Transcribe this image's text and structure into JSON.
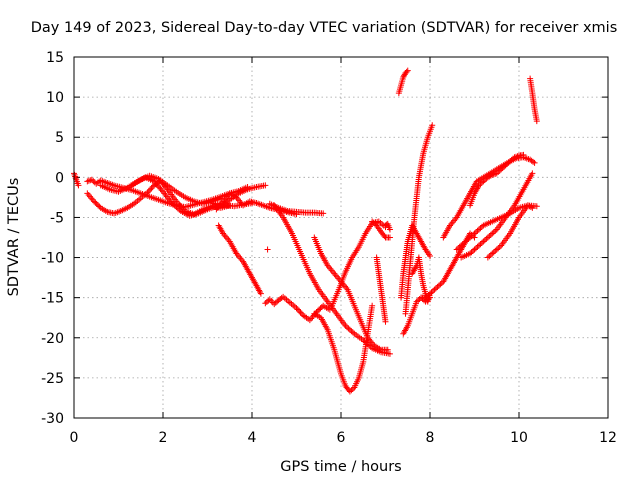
{
  "chart_data": {
    "type": "scatter",
    "title": "Day 149 of 2023, Sidereal Day-to-day VTEC variation (SDTVAR) for receiver xmis",
    "xlabel": "GPS time / hours",
    "ylabel": "SDTVAR / TECUs",
    "xlim": [
      0,
      12
    ],
    "ylim": [
      -30,
      15
    ],
    "xticks": [
      0,
      2,
      4,
      6,
      8,
      10,
      12
    ],
    "yticks": [
      -30,
      -25,
      -20,
      -15,
      -10,
      -5,
      0,
      5,
      10,
      15
    ],
    "grid": true,
    "marker": "+",
    "color": "#ff0000",
    "series": [
      {
        "x": [
          0.0,
          0.05,
          0.1
        ],
        "y": [
          0.5,
          -0.3,
          -1.0
        ]
      },
      {
        "x": [
          0.3,
          0.4,
          0.5,
          0.6,
          0.75,
          0.9,
          1.1,
          1.3,
          1.5,
          1.7,
          1.9,
          2.1,
          2.3,
          2.5,
          2.7,
          2.9,
          3.1,
          3.3,
          3.5,
          3.7,
          3.9
        ],
        "y": [
          -0.5,
          -0.3,
          -0.8,
          -0.4,
          -0.7,
          -1.0,
          -1.3,
          -1.6,
          -2.0,
          -2.4,
          -2.8,
          -3.2,
          -3.5,
          -3.7,
          -3.4,
          -3.1,
          -2.8,
          -2.4,
          -2.0,
          -1.7,
          -1.2
        ]
      },
      {
        "x": [
          0.3,
          0.45,
          0.6,
          0.75,
          0.9,
          1.05,
          1.2,
          1.35,
          1.5,
          1.65,
          1.8,
          1.95,
          2.1,
          2.3,
          2.5,
          2.7,
          2.9,
          3.1,
          3.3
        ],
        "y": [
          -2.0,
          -3.0,
          -3.8,
          -4.3,
          -4.5,
          -4.2,
          -3.8,
          -3.3,
          -2.6,
          -1.9,
          -1.0,
          -0.4,
          -1.0,
          -1.8,
          -2.5,
          -3.0,
          -3.3,
          -3.0,
          -2.6
        ]
      },
      {
        "x": [
          0.6,
          0.8,
          1.0,
          1.2,
          1.4,
          1.6,
          1.8,
          2.0,
          2.2,
          2.4,
          2.6,
          2.8,
          3.0,
          3.2,
          3.4,
          3.6,
          3.8,
          4.0
        ],
        "y": [
          -1.0,
          -1.5,
          -1.8,
          -1.3,
          -0.6,
          0.0,
          -0.5,
          -1.8,
          -3.2,
          -4.2,
          -4.8,
          -4.5,
          -4.0,
          -3.6,
          -3.5,
          -3.6,
          -3.4,
          -3.2
        ]
      },
      {
        "x": [
          1.3,
          1.5,
          1.7,
          1.9,
          2.1,
          2.3,
          2.5,
          2.7,
          2.9,
          3.1,
          3.3,
          3.5
        ],
        "y": [
          -1.0,
          -0.3,
          0.2,
          -0.2,
          -1.5,
          -3.0,
          -4.2,
          -4.6,
          -4.0,
          -3.6,
          -3.8,
          -3.5
        ]
      },
      {
        "x": [
          3.2,
          3.35,
          3.5,
          3.65,
          3.8,
          3.95,
          4.1,
          4.25,
          4.4,
          4.55,
          4.7,
          4.85,
          5.0
        ],
        "y": [
          -4.0,
          -3.0,
          -2.0,
          -2.5,
          -3.5,
          -3.0,
          -3.2,
          -3.5,
          -3.8,
          -4.0,
          -4.2,
          -4.4,
          -4.6
        ]
      },
      {
        "x": [
          3.1,
          3.3,
          3.5,
          3.7,
          3.9,
          4.1,
          4.3
        ],
        "y": [
          -3.2,
          -3.5,
          -2.8,
          -2.0,
          -1.5,
          -1.2,
          -1.0
        ]
      },
      {
        "x": [
          3.25,
          3.35,
          3.5,
          3.65,
          3.8,
          3.9,
          4.0,
          4.1,
          4.2
        ],
        "y": [
          -6.0,
          -7.0,
          -8.0,
          -9.5,
          -10.5,
          -11.5,
          -12.5,
          -13.5,
          -14.5
        ]
      },
      {
        "x": [
          4.35
        ],
        "y": [
          -9.0
        ]
      },
      {
        "x": [
          4.3,
          4.4,
          4.5,
          4.6,
          4.7,
          4.85,
          5.0,
          5.15,
          5.3,
          5.45,
          5.6,
          5.75
        ],
        "y": [
          -15.7,
          -15.2,
          -15.8,
          -15.3,
          -14.9,
          -15.6,
          -16.3,
          -17.2,
          -17.8,
          -16.8,
          -16.0,
          -16.5
        ]
      },
      {
        "x": [
          4.4,
          4.6,
          4.8,
          5.0,
          5.2,
          5.4,
          5.6
        ],
        "y": [
          -3.3,
          -3.8,
          -4.2,
          -4.3,
          -4.4,
          -4.4,
          -4.5
        ]
      },
      {
        "x": [
          4.5,
          4.7,
          4.9,
          5.1,
          5.3,
          5.5,
          5.7,
          5.9,
          6.1,
          6.3,
          6.5,
          6.7,
          6.9,
          7.1
        ],
        "y": [
          -3.5,
          -5.0,
          -7.0,
          -9.5,
          -12.0,
          -14.0,
          -15.5,
          -17.0,
          -18.5,
          -19.5,
          -20.3,
          -21.3,
          -21.8,
          -22.0
        ]
      },
      {
        "x": [
          5.4,
          5.55,
          5.7,
          5.85,
          6.0,
          6.15,
          6.3,
          6.45,
          6.6,
          6.75,
          6.9,
          7.05
        ],
        "y": [
          -7.5,
          -9.5,
          -11.0,
          -12.0,
          -13.0,
          -14.0,
          -16.0,
          -18.0,
          -20.0,
          -21.0,
          -21.5,
          -21.5
        ]
      },
      {
        "x": [
          5.4,
          5.55,
          5.7,
          5.85,
          6.0,
          6.1,
          6.2,
          6.3,
          6.4,
          6.5,
          6.6,
          6.7
        ],
        "y": [
          -17.0,
          -17.5,
          -19.0,
          -21.5,
          -24.5,
          -26.0,
          -26.7,
          -26.2,
          -25.0,
          -23.0,
          -19.5,
          -16.0
        ]
      },
      {
        "x": [
          5.8,
          5.95,
          6.1,
          6.25,
          6.4,
          6.55,
          6.7,
          6.85,
          7.0
        ],
        "y": [
          -16.0,
          -14.0,
          -11.8,
          -10.0,
          -8.7,
          -7.0,
          -5.7,
          -5.5,
          -6.2
        ]
      },
      {
        "x": [
          6.7,
          6.8,
          6.9,
          7.0,
          7.1
        ],
        "y": [
          -5.5,
          -6.0,
          -6.8,
          -7.5,
          -7.5
        ]
      },
      {
        "x": [
          6.8,
          6.85,
          6.9,
          6.95,
          7.0
        ],
        "y": [
          -10.0,
          -12.0,
          -14.0,
          -16.0,
          -18.0
        ]
      },
      {
        "x": [
          7.0,
          7.05,
          7.1
        ],
        "y": [
          -6.0,
          -5.8,
          -6.5
        ]
      },
      {
        "x": [
          7.3,
          7.35,
          7.4,
          7.45,
          7.5
        ],
        "y": [
          10.5,
          11.5,
          12.5,
          13.0,
          13.3
        ]
      },
      {
        "x": [
          7.35,
          7.4,
          7.45,
          7.5,
          7.6,
          7.7,
          7.8,
          7.9,
          8.0
        ],
        "y": [
          -15.0,
          -12.0,
          -10.0,
          -8.0,
          -6.0,
          -7.0,
          -8.0,
          -9.0,
          -9.8
        ]
      },
      {
        "x": [
          7.4,
          7.5,
          7.6,
          7.7,
          7.8,
          7.9,
          8.0
        ],
        "y": [
          -19.5,
          -18.5,
          -17.0,
          -15.5,
          -15.0,
          -15.5,
          -15.0
        ]
      },
      {
        "x": [
          7.45,
          7.55,
          7.65,
          7.75,
          7.85,
          7.95,
          8.05
        ],
        "y": [
          -17.0,
          -11.0,
          -5.0,
          0.0,
          3.0,
          5.0,
          6.5
        ]
      },
      {
        "x": [
          7.6,
          7.7,
          7.75,
          7.8,
          7.85,
          7.9,
          7.95,
          8.0
        ],
        "y": [
          -12.0,
          -11.0,
          -10.0,
          -12.0,
          -13.5,
          -14.5,
          -15.5,
          -14.5
        ]
      },
      {
        "x": [
          7.8,
          7.9,
          8.0,
          8.1,
          8.2,
          8.3,
          8.4,
          8.5,
          8.6,
          8.7,
          8.8,
          8.9,
          9.0
        ],
        "y": [
          -15.0,
          -15.0,
          -14.5,
          -14.0,
          -13.5,
          -13.0,
          -12.0,
          -11.0,
          -10.0,
          -9.0,
          -8.0,
          -7.0,
          -7.5
        ]
      },
      {
        "x": [
          8.3,
          8.45,
          8.6,
          8.75,
          8.9,
          9.05,
          9.2,
          9.35,
          9.5,
          9.65,
          9.8,
          9.95,
          10.1,
          10.25,
          10.35
        ],
        "y": [
          -7.5,
          -6.0,
          -5.0,
          -3.5,
          -2.0,
          -0.5,
          0.0,
          0.5,
          1.0,
          1.5,
          2.0,
          2.4,
          2.5,
          2.2,
          1.8
        ]
      },
      {
        "x": [
          8.9,
          9.0,
          9.1,
          9.2,
          9.3,
          9.4,
          9.5,
          9.6,
          9.7,
          9.8,
          9.9,
          10.0,
          10.1
        ],
        "y": [
          -3.5,
          -2.0,
          -1.0,
          -0.5,
          0.0,
          0.3,
          0.5,
          1.0,
          1.5,
          2.0,
          2.5,
          2.7,
          2.8
        ]
      },
      {
        "x": [
          8.6,
          8.8,
          9.0,
          9.2,
          9.4,
          9.6,
          9.8,
          10.0,
          10.2,
          10.4
        ],
        "y": [
          -9.0,
          -8.0,
          -7.0,
          -6.0,
          -5.5,
          -5.0,
          -4.5,
          -3.8,
          -3.5,
          -3.6
        ]
      },
      {
        "x": [
          8.7,
          8.9,
          9.1,
          9.3,
          9.5,
          9.7,
          9.9,
          10.1,
          10.3
        ],
        "y": [
          -10.0,
          -9.5,
          -8.5,
          -7.5,
          -6.5,
          -5.0,
          -3.5,
          -1.5,
          0.5
        ]
      },
      {
        "x": [
          9.3,
          9.4,
          9.6,
          9.8,
          10.0,
          10.2,
          10.3
        ],
        "y": [
          -10.0,
          -9.5,
          -8.5,
          -7.0,
          -5.0,
          -3.5,
          -3.8
        ]
      },
      {
        "x": [
          10.25,
          10.3,
          10.35,
          10.4
        ],
        "y": [
          12.3,
          10.5,
          8.5,
          7.0
        ]
      }
    ]
  }
}
